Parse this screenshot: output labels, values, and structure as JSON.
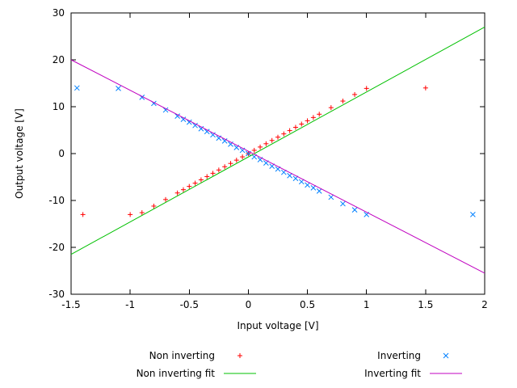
{
  "chart_data": {
    "type": "scatter",
    "title": "",
    "xlabel": "Input voltage [V]",
    "ylabel": "Output voltage [V]",
    "xlim": [
      -1.5,
      2
    ],
    "ylim": [
      -30,
      30
    ],
    "xticks": [
      -1.5,
      -1,
      -0.5,
      0,
      0.5,
      1,
      1.5,
      2
    ],
    "yticks": [
      -30,
      -20,
      -10,
      0,
      10,
      20,
      30
    ],
    "grid": false,
    "legend_position": "below-center",
    "background": "#ffffff",
    "axis_color": "#000000",
    "text_color": "#000000",
    "series": [
      {
        "name": "Non inverting",
        "kind": "points",
        "marker": "plus",
        "color": "#ff0000",
        "points": [
          [
            -1.4,
            -13
          ],
          [
            -1,
            -13
          ],
          [
            -0.9,
            -12.6
          ],
          [
            -0.8,
            -11.2
          ],
          [
            -0.7,
            -9.8
          ],
          [
            -0.6,
            -8.4
          ],
          [
            -0.55,
            -7.7
          ],
          [
            -0.5,
            -7
          ],
          [
            -0.45,
            -6.3
          ],
          [
            -0.4,
            -5.6
          ],
          [
            -0.35,
            -4.9
          ],
          [
            -0.3,
            -4.2
          ],
          [
            -0.25,
            -3.5
          ],
          [
            -0.2,
            -2.8
          ],
          [
            -0.15,
            -2.1
          ],
          [
            -0.1,
            -1.4
          ],
          [
            -0.05,
            -0.7
          ],
          [
            0,
            0
          ],
          [
            0.05,
            0.7
          ],
          [
            0.1,
            1.4
          ],
          [
            0.15,
            2.1
          ],
          [
            0.2,
            2.8
          ],
          [
            0.25,
            3.5
          ],
          [
            0.3,
            4.2
          ],
          [
            0.35,
            4.9
          ],
          [
            0.4,
            5.6
          ],
          [
            0.45,
            6.3
          ],
          [
            0.5,
            7
          ],
          [
            0.55,
            7.7
          ],
          [
            0.6,
            8.4
          ],
          [
            0.7,
            9.8
          ],
          [
            0.8,
            11.2
          ],
          [
            0.9,
            12.6
          ],
          [
            1,
            13.9
          ],
          [
            1.5,
            14
          ]
        ]
      },
      {
        "name": "Inverting",
        "kind": "points",
        "marker": "cross",
        "color": "#0080ff",
        "points": [
          [
            -1.45,
            14
          ],
          [
            -1.1,
            13.9
          ],
          [
            -0.9,
            12
          ],
          [
            -0.8,
            10.7
          ],
          [
            -0.7,
            9.3
          ],
          [
            -0.6,
            8
          ],
          [
            -0.55,
            7.3
          ],
          [
            -0.5,
            6.7
          ],
          [
            -0.45,
            6
          ],
          [
            -0.4,
            5.3
          ],
          [
            -0.35,
            4.7
          ],
          [
            -0.3,
            4
          ],
          [
            -0.25,
            3.3
          ],
          [
            -0.2,
            2.7
          ],
          [
            -0.15,
            2
          ],
          [
            -0.1,
            1.3
          ],
          [
            -0.05,
            0.7
          ],
          [
            0,
            0
          ],
          [
            0.05,
            -0.7
          ],
          [
            0.1,
            -1.3
          ],
          [
            0.15,
            -2
          ],
          [
            0.2,
            -2.7
          ],
          [
            0.25,
            -3.3
          ],
          [
            0.3,
            -4
          ],
          [
            0.35,
            -4.7
          ],
          [
            0.4,
            -5.3
          ],
          [
            0.45,
            -6
          ],
          [
            0.5,
            -6.7
          ],
          [
            0.55,
            -7.3
          ],
          [
            0.6,
            -8
          ],
          [
            0.7,
            -9.3
          ],
          [
            0.8,
            -10.7
          ],
          [
            0.9,
            -12
          ],
          [
            1,
            -13
          ],
          [
            1.9,
            -13
          ]
        ]
      },
      {
        "name": "Non inverting fit",
        "kind": "line",
        "color": "#00c000",
        "points": [
          [
            -1.5,
            -21.5
          ],
          [
            2,
            27
          ]
        ]
      },
      {
        "name": "Inverting fit",
        "kind": "line",
        "color": "#c000c0",
        "points": [
          [
            -1.5,
            20
          ],
          [
            2,
            -25.5
          ]
        ]
      }
    ]
  }
}
